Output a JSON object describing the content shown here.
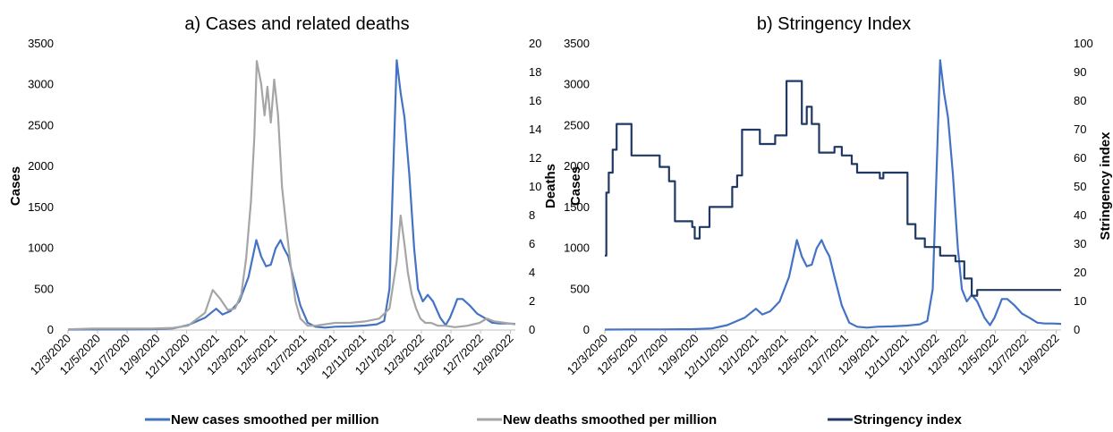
{
  "colors": {
    "cases": "#4472c4",
    "deaths": "#a5a5a5",
    "stringency": "#1f3864",
    "axis": "#bfbfbf"
  },
  "legend": {
    "position": "bottom",
    "items": [
      {
        "label": "New cases smoothed per million",
        "color": "#4472c4"
      },
      {
        "label": "New deaths smoothed per million",
        "color": "#a5a5a5"
      },
      {
        "label": "Stringency index",
        "color": "#1f3864"
      }
    ]
  },
  "chart_data": [
    {
      "type": "line",
      "title": "a) Cases and related deaths",
      "ylabel": "Cases",
      "y2label": "Deaths",
      "ylim": [
        0,
        3500
      ],
      "y2lim": [
        0,
        20
      ],
      "yticks": [
        0,
        500,
        1000,
        1500,
        2000,
        2500,
        3000,
        3500
      ],
      "y2ticks": [
        0,
        2,
        4,
        6,
        8,
        10,
        12,
        14,
        16,
        18,
        20
      ],
      "xlim": [
        "2020-03-12",
        "2022-09-22"
      ],
      "xtick_labels": [
        "12/3/2020",
        "12/5/2020",
        "12/7/2020",
        "12/9/2020",
        "12/11/2020",
        "12/1/2021",
        "12/3/2021",
        "12/5/2021",
        "12/7/2021",
        "12/9/2021",
        "12/11/2021",
        "12/1/2022",
        "12/3/2022",
        "12/5/2022",
        "12/7/2022",
        "12/9/2022"
      ],
      "series": [
        {
          "name": "New cases smoothed per million",
          "axis": "left",
          "x": [
            "2020-03-12",
            "2020-05-01",
            "2020-07-01",
            "2020-09-01",
            "2020-10-15",
            "2020-11-15",
            "2020-12-20",
            "2021-01-12",
            "2021-01-25",
            "2021-02-10",
            "2021-03-01",
            "2021-03-20",
            "2021-04-05",
            "2021-04-15",
            "2021-04-25",
            "2021-05-05",
            "2021-05-15",
            "2021-05-25",
            "2021-06-01",
            "2021-06-10",
            "2021-06-20",
            "2021-07-05",
            "2021-07-20",
            "2021-08-05",
            "2021-08-25",
            "2021-09-15",
            "2021-10-15",
            "2021-11-15",
            "2021-12-10",
            "2021-12-25",
            "2022-01-05",
            "2022-01-12",
            "2022-01-20",
            "2022-01-28",
            "2022-02-05",
            "2022-02-15",
            "2022-02-25",
            "2022-03-05",
            "2022-03-15",
            "2022-03-25",
            "2022-04-05",
            "2022-04-20",
            "2022-05-01",
            "2022-05-10",
            "2022-05-20",
            "2022-05-25",
            "2022-06-05",
            "2022-06-20",
            "2022-07-05",
            "2022-07-20",
            "2022-08-05",
            "2022-08-20",
            "2022-09-05",
            "2022-09-22"
          ],
          "values": [
            5,
            8,
            8,
            10,
            20,
            60,
            150,
            260,
            190,
            230,
            350,
            650,
            1100,
            900,
            780,
            800,
            1000,
            1100,
            1000,
            900,
            650,
            300,
            90,
            40,
            30,
            40,
            45,
            55,
            70,
            110,
            500,
            1800,
            3300,
            2900,
            2600,
            1900,
            1000,
            500,
            350,
            430,
            350,
            150,
            60,
            150,
            300,
            380,
            380,
            300,
            200,
            150,
            90,
            80,
            80,
            75
          ]
        },
        {
          "name": "New deaths smoothed per million",
          "axis": "right",
          "x": [
            "2020-03-12",
            "2020-05-01",
            "2020-07-01",
            "2020-09-01",
            "2020-10-15",
            "2020-11-15",
            "2020-12-20",
            "2021-01-05",
            "2021-01-20",
            "2021-02-05",
            "2021-02-20",
            "2021-03-05",
            "2021-03-15",
            "2021-03-25",
            "2021-04-01",
            "2021-04-06",
            "2021-04-15",
            "2021-04-22",
            "2021-04-28",
            "2021-05-05",
            "2021-05-12",
            "2021-05-20",
            "2021-05-28",
            "2021-06-05",
            "2021-06-15",
            "2021-06-25",
            "2021-07-05",
            "2021-07-20",
            "2021-08-05",
            "2021-08-25",
            "2021-09-15",
            "2021-10-15",
            "2021-11-15",
            "2021-12-15",
            "2022-01-05",
            "2022-01-20",
            "2022-01-28",
            "2022-02-05",
            "2022-02-12",
            "2022-02-20",
            "2022-03-01",
            "2022-03-10",
            "2022-03-20",
            "2022-04-01",
            "2022-04-15",
            "2022-05-01",
            "2022-05-20",
            "2022-06-15",
            "2022-07-10",
            "2022-07-25",
            "2022-08-10",
            "2022-09-01",
            "2022-09-22"
          ],
          "values": [
            0.05,
            0.1,
            0.1,
            0.1,
            0.15,
            0.3,
            1.2,
            2.8,
            2.2,
            1.4,
            1.5,
            2.5,
            5.0,
            9.0,
            13.5,
            18.8,
            17.2,
            15.0,
            17.0,
            14.5,
            17.5,
            15.0,
            10.0,
            7.5,
            4.5,
            2.0,
            0.8,
            0.3,
            0.3,
            0.4,
            0.5,
            0.5,
            0.6,
            0.8,
            1.5,
            4.8,
            8.0,
            6.0,
            4.0,
            2.5,
            1.5,
            0.8,
            0.5,
            0.5,
            0.3,
            0.3,
            0.2,
            0.3,
            0.5,
            0.8,
            0.6,
            0.5,
            0.4
          ]
        }
      ]
    },
    {
      "type": "line",
      "title": "b) Stringency Index",
      "ylabel": "Cases",
      "y2label": "Stringency index",
      "ylim": [
        0,
        3500
      ],
      "y2lim": [
        0,
        100
      ],
      "yticks": [
        0,
        500,
        1000,
        1500,
        2000,
        2500,
        3000,
        3500
      ],
      "y2ticks": [
        0,
        10,
        20,
        30,
        40,
        50,
        60,
        70,
        80,
        90,
        100
      ],
      "xlim": [
        "2020-03-12",
        "2022-09-22"
      ],
      "xtick_labels": [
        "12/3/2020",
        "12/5/2020",
        "12/7/2020",
        "12/9/2020",
        "12/11/2020",
        "12/1/2021",
        "12/3/2021",
        "12/5/2021",
        "12/7/2021",
        "12/9/2021",
        "12/11/2021",
        "12/1/2022",
        "12/3/2022",
        "12/5/2022",
        "12/7/2022",
        "12/9/2022"
      ],
      "series": [
        {
          "name": "New cases smoothed per million",
          "axis": "left",
          "x": [
            "2020-03-12",
            "2020-05-01",
            "2020-07-01",
            "2020-09-01",
            "2020-10-15",
            "2020-11-15",
            "2020-12-20",
            "2021-01-12",
            "2021-01-25",
            "2021-02-10",
            "2021-03-01",
            "2021-03-20",
            "2021-04-05",
            "2021-04-15",
            "2021-04-25",
            "2021-05-05",
            "2021-05-15",
            "2021-05-25",
            "2021-06-01",
            "2021-06-10",
            "2021-06-20",
            "2021-07-05",
            "2021-07-20",
            "2021-08-05",
            "2021-08-25",
            "2021-09-15",
            "2021-10-15",
            "2021-11-15",
            "2021-12-10",
            "2021-12-25",
            "2022-01-05",
            "2022-01-12",
            "2022-01-20",
            "2022-01-28",
            "2022-02-05",
            "2022-02-15",
            "2022-02-25",
            "2022-03-05",
            "2022-03-15",
            "2022-03-25",
            "2022-04-05",
            "2022-04-20",
            "2022-05-01",
            "2022-05-10",
            "2022-05-20",
            "2022-05-25",
            "2022-06-05",
            "2022-06-20",
            "2022-07-05",
            "2022-07-20",
            "2022-08-05",
            "2022-08-20",
            "2022-09-05",
            "2022-09-22"
          ],
          "values": [
            5,
            8,
            8,
            10,
            20,
            60,
            150,
            260,
            190,
            230,
            350,
            650,
            1100,
            900,
            780,
            800,
            1000,
            1100,
            1000,
            900,
            650,
            300,
            90,
            40,
            30,
            40,
            45,
            55,
            70,
            110,
            500,
            1800,
            3300,
            2900,
            2600,
            1900,
            1000,
            500,
            350,
            430,
            350,
            150,
            60,
            150,
            300,
            380,
            380,
            300,
            200,
            150,
            90,
            80,
            80,
            75
          ]
        },
        {
          "name": "Stringency index",
          "axis": "right",
          "step": true,
          "x": [
            "2020-03-12",
            "2020-03-15",
            "2020-03-20",
            "2020-03-28",
            "2020-04-05",
            "2020-05-05",
            "2020-07-01",
            "2020-07-20",
            "2020-08-01",
            "2020-09-05",
            "2020-09-10",
            "2020-09-20",
            "2020-10-10",
            "2020-11-25",
            "2020-12-05",
            "2020-12-15",
            "2021-01-20",
            "2021-02-20",
            "2021-03-15",
            "2021-04-15",
            "2021-04-25",
            "2021-05-05",
            "2021-05-20",
            "2021-06-20",
            "2021-07-05",
            "2021-07-25",
            "2021-08-05",
            "2021-08-25",
            "2021-09-20",
            "2021-09-27",
            "2021-10-15",
            "2021-11-15",
            "2021-12-01",
            "2021-12-20",
            "2022-01-05",
            "2022-01-20",
            "2022-02-20",
            "2022-03-10",
            "2022-03-25",
            "2022-04-05",
            "2022-09-22"
          ],
          "values": [
            26,
            48,
            55,
            63,
            72,
            61,
            57,
            52,
            38,
            36,
            32,
            36,
            43,
            50,
            54,
            70,
            65,
            68,
            87,
            72,
            78,
            72,
            62,
            64,
            61,
            58,
            55,
            55,
            53,
            55,
            55,
            37,
            32,
            29,
            29,
            26,
            24,
            18,
            12,
            14,
            14
          ]
        }
      ]
    }
  ]
}
